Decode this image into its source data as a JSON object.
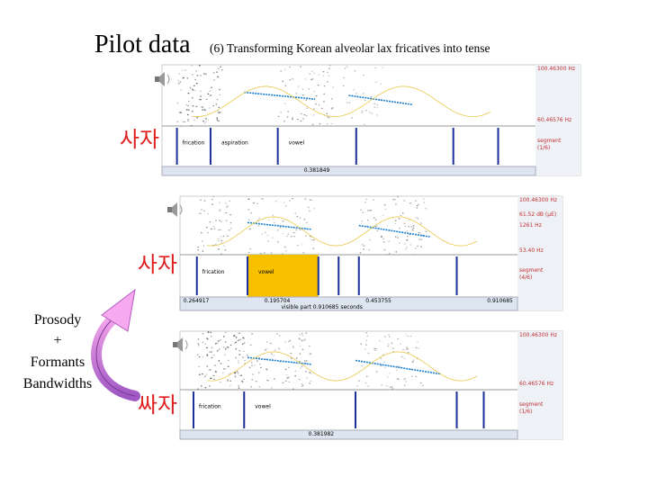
{
  "title": "Pilot data",
  "subtitle": "(6) Transforming Korean alveolar lax fricatives into tense",
  "note": [
    "Prosody",
    "+",
    "Formants",
    "Bandwidths"
  ],
  "panels": [
    {
      "label": "사자",
      "freq_labels": [
        "100.46300 Hz",
        "60.46576 Hz"
      ],
      "tiers": [
        "frication",
        "aspiration",
        "vowel"
      ],
      "tier_info": [
        "segment",
        "(1/6)"
      ],
      "times": [
        "0.381849"
      ]
    },
    {
      "label": "사자",
      "freq_labels": [
        "100.46300 Hz",
        "61.52 dB (μE)",
        "1261 Hz",
        "53.40 Hz"
      ],
      "tiers": [
        "frication",
        "vowel"
      ],
      "tier_info": [
        "segment",
        "(4/6)"
      ],
      "times": [
        "0.264917",
        "0.195704",
        "0.453755",
        "0.910685"
      ],
      "visible": "visible part 0.910685 seconds"
    },
    {
      "label": "싸자",
      "freq_labels": [
        "100.46300 Hz",
        "60.46576 Hz"
      ],
      "tiers": [
        "frication",
        "vowel"
      ],
      "tier_info": [
        "segment",
        "(1/6)"
      ],
      "times": [
        "0.381982"
      ]
    }
  ]
}
